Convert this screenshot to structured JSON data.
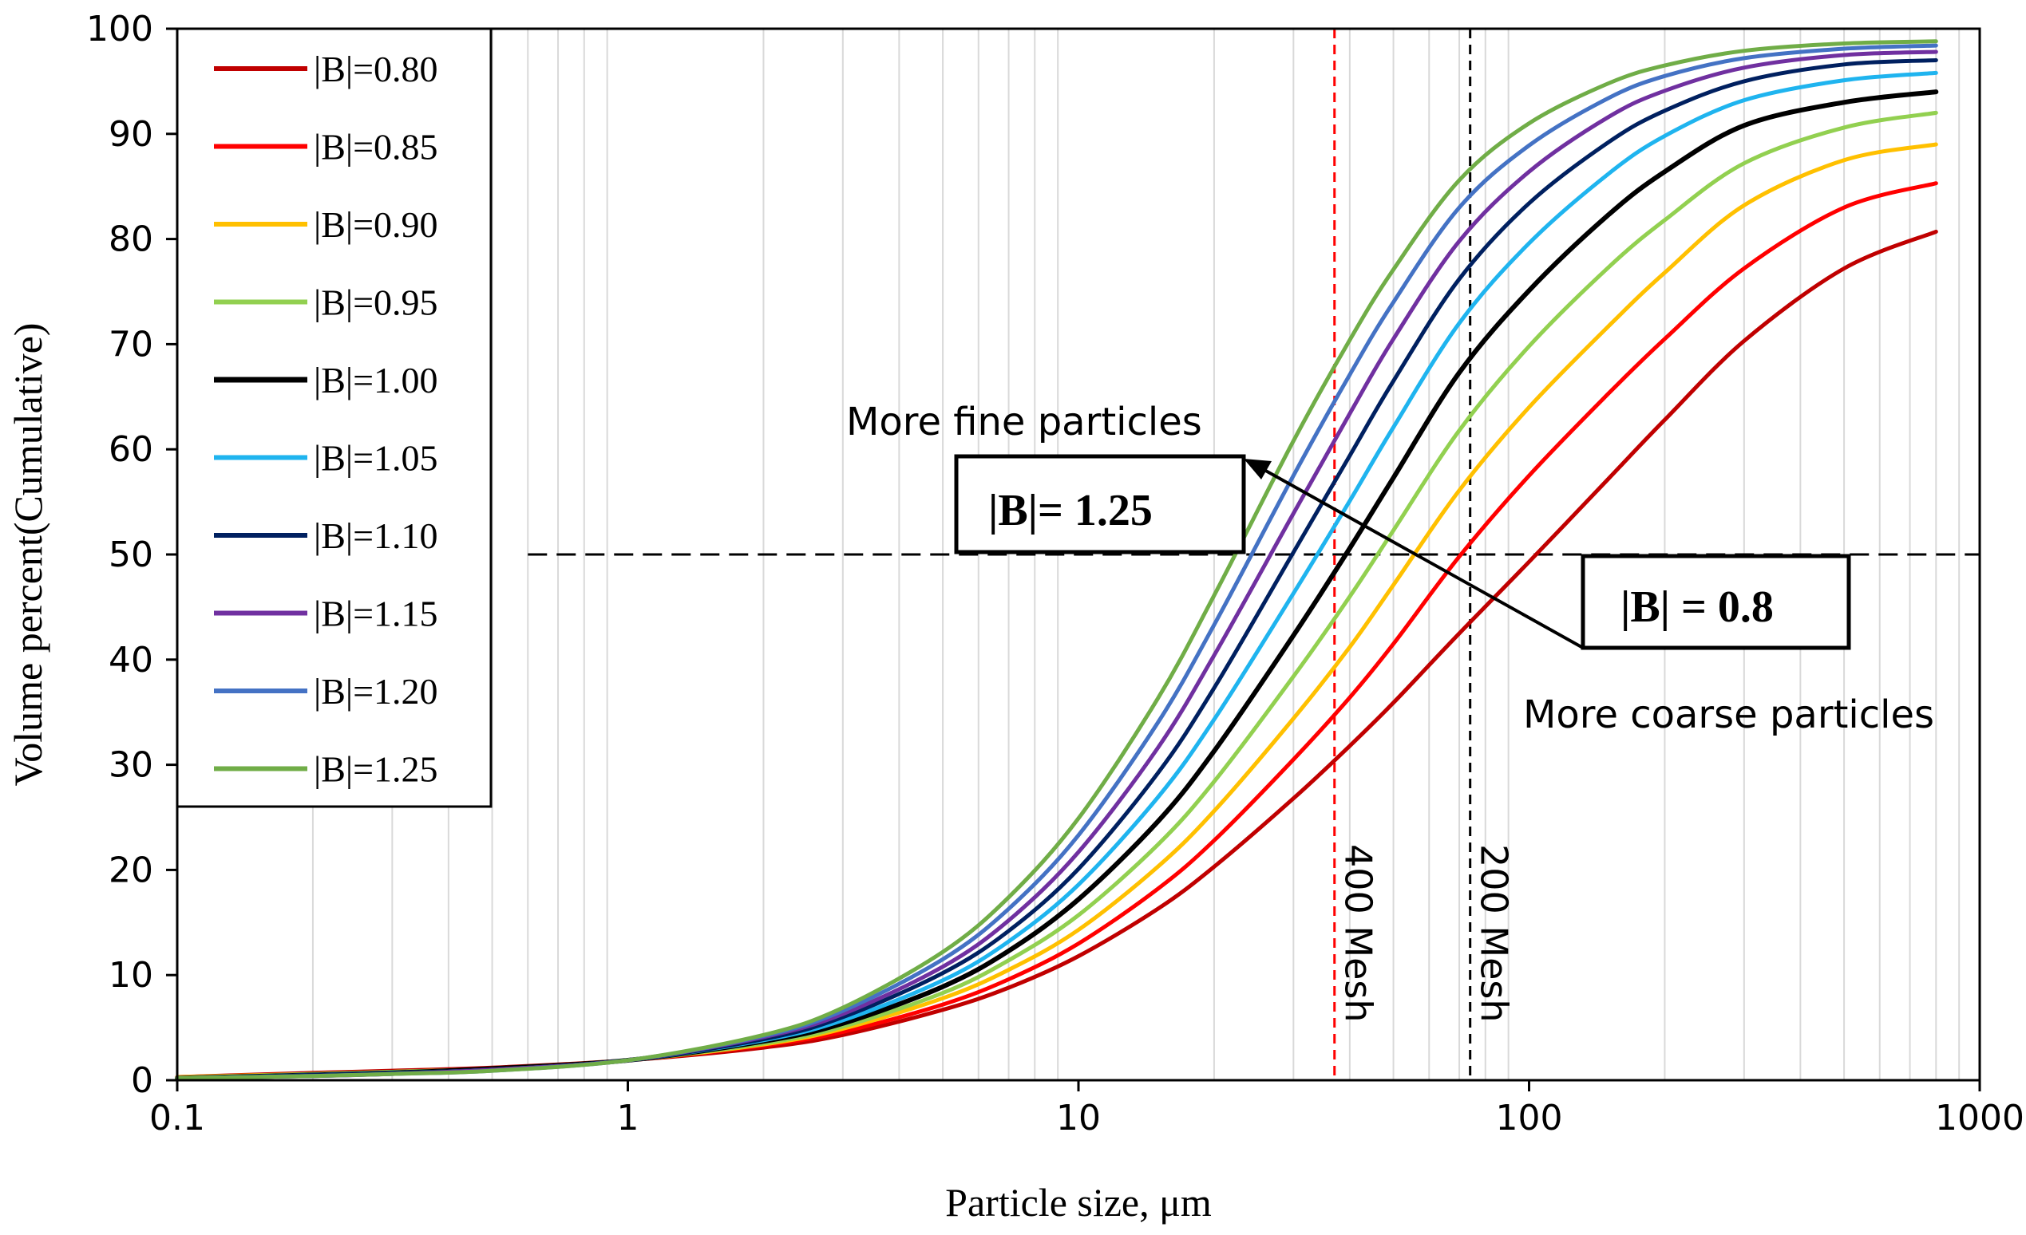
{
  "chart_data": {
    "type": "line",
    "xscale": "log",
    "xlim": [
      0.1,
      1000
    ],
    "ylim": [
      0,
      100
    ],
    "xlabel": "Particle size, μm",
    "ylabel": "Volume percent(Cumulative)",
    "xticks": [
      "0.1",
      "1",
      "10",
      "100",
      "1000"
    ],
    "yticks": [
      "0",
      "10",
      "20",
      "30",
      "40",
      "50",
      "60",
      "70",
      "80",
      "90",
      "100"
    ],
    "grid": "vertical minor log gridlines",
    "legend_position": "top-left",
    "x": [
      0.1,
      0.2,
      0.3,
      0.5,
      1,
      2,
      3,
      5,
      7,
      10,
      15,
      20,
      30,
      40,
      50,
      70,
      100,
      150,
      200,
      300,
      500,
      800
    ],
    "series": [
      {
        "name": "|B|=0.80",
        "color": "#C00000",
        "values": [
          0.3,
          0.7,
          0.9,
          1.2,
          1.9,
          3.1,
          4.3,
          6.7,
          8.8,
          11.8,
          16.3,
          20.3,
          26.8,
          31.8,
          35.9,
          42.5,
          49.3,
          57.2,
          62.8,
          70.3,
          77.2,
          80.7
        ]
      },
      {
        "name": "|B|=0.85",
        "color": "#FF0000",
        "values": [
          0.3,
          0.6,
          0.8,
          1.1,
          1.9,
          3.3,
          4.6,
          7.2,
          9.6,
          13.0,
          18.2,
          22.8,
          30.5,
          36.4,
          41.5,
          49.8,
          57.5,
          65.3,
          70.5,
          77.2,
          83.0,
          85.3
        ]
      },
      {
        "name": "|B|=0.90",
        "color": "#FFC000",
        "values": [
          0.3,
          0.6,
          0.8,
          1.1,
          1.9,
          3.4,
          4.9,
          7.8,
          10.5,
          14.3,
          20.3,
          25.6,
          34.4,
          41.2,
          47.1,
          56.1,
          64.0,
          71.7,
          76.8,
          83.2,
          87.5,
          89.0
        ]
      },
      {
        "name": "|B|=0.95",
        "color": "#92D050",
        "values": [
          0.2,
          0.6,
          0.8,
          1.1,
          1.9,
          3.5,
          5.1,
          8.3,
          11.4,
          15.7,
          22.4,
          28.4,
          38.4,
          46.0,
          52.3,
          61.8,
          69.8,
          77.3,
          81.8,
          87.2,
          90.6,
          92.0
        ]
      },
      {
        "name": "|B|=1.00",
        "color": "#000000",
        "values": [
          0.2,
          0.5,
          0.7,
          1.1,
          1.9,
          3.7,
          5.4,
          8.9,
          12.3,
          17.2,
          24.6,
          31.3,
          42.3,
          50.6,
          57.3,
          67.3,
          75.1,
          82.3,
          86.4,
          90.8,
          93.0,
          94.0
        ]
      },
      {
        "name": "|B|=1.05",
        "color": "#1FB4EF",
        "values": [
          0.2,
          0.5,
          0.7,
          1.0,
          1.9,
          3.8,
          5.7,
          9.5,
          13.2,
          18.6,
          26.9,
          34.3,
          46.3,
          55.1,
          62.1,
          72.0,
          79.6,
          86.2,
          89.8,
          93.2,
          95.1,
          95.8
        ]
      },
      {
        "name": "|B|=1.10",
        "color": "#002060",
        "values": [
          0.2,
          0.5,
          0.7,
          1.0,
          1.9,
          3.9,
          6.0,
          10.2,
          14.2,
          20.1,
          29.2,
          37.3,
          50.2,
          59.4,
          66.5,
          76.2,
          83.4,
          89.2,
          92.2,
          95.0,
          96.6,
          97.0
        ]
      },
      {
        "name": "|B|=1.15",
        "color": "#7030A0",
        "values": [
          0.2,
          0.4,
          0.6,
          1.0,
          1.9,
          4.1,
          6.3,
          10.8,
          15.2,
          21.7,
          31.6,
          40.4,
          53.9,
          63.4,
          70.5,
          79.8,
          86.4,
          91.6,
          94.1,
          96.3,
          97.5,
          97.8
        ]
      },
      {
        "name": "|B|=1.20",
        "color": "#4472C4",
        "values": [
          0.2,
          0.4,
          0.6,
          0.9,
          1.9,
          4.2,
          6.6,
          11.5,
          16.3,
          23.3,
          34.0,
          43.3,
          57.5,
          67.1,
          74.0,
          83.0,
          88.9,
          93.4,
          95.5,
          97.2,
          98.1,
          98.4
        ]
      },
      {
        "name": "|B|=1.25",
        "color": "#70AD47",
        "values": [
          0.2,
          0.4,
          0.6,
          0.9,
          1.9,
          4.3,
          6.9,
          12.2,
          17.4,
          24.9,
          36.3,
          46.1,
          60.8,
          70.4,
          77.1,
          85.6,
          91.0,
          94.8,
          96.5,
          97.9,
          98.6,
          98.8
        ]
      }
    ],
    "reference_lines": {
      "h50": {
        "y": 50,
        "color": "#000000"
      },
      "mesh400": {
        "x": 37,
        "label": "400 Mesh",
        "color": "#FF0000"
      },
      "mesh200": {
        "x": 74,
        "label": "200 Mesh",
        "color": "#000000"
      }
    },
    "annotations": {
      "fine_text": "More fine particles",
      "coarse_text": "More coarse particles",
      "box_high": "|B|= 1.25",
      "box_low": "|B| = 0.8"
    }
  }
}
